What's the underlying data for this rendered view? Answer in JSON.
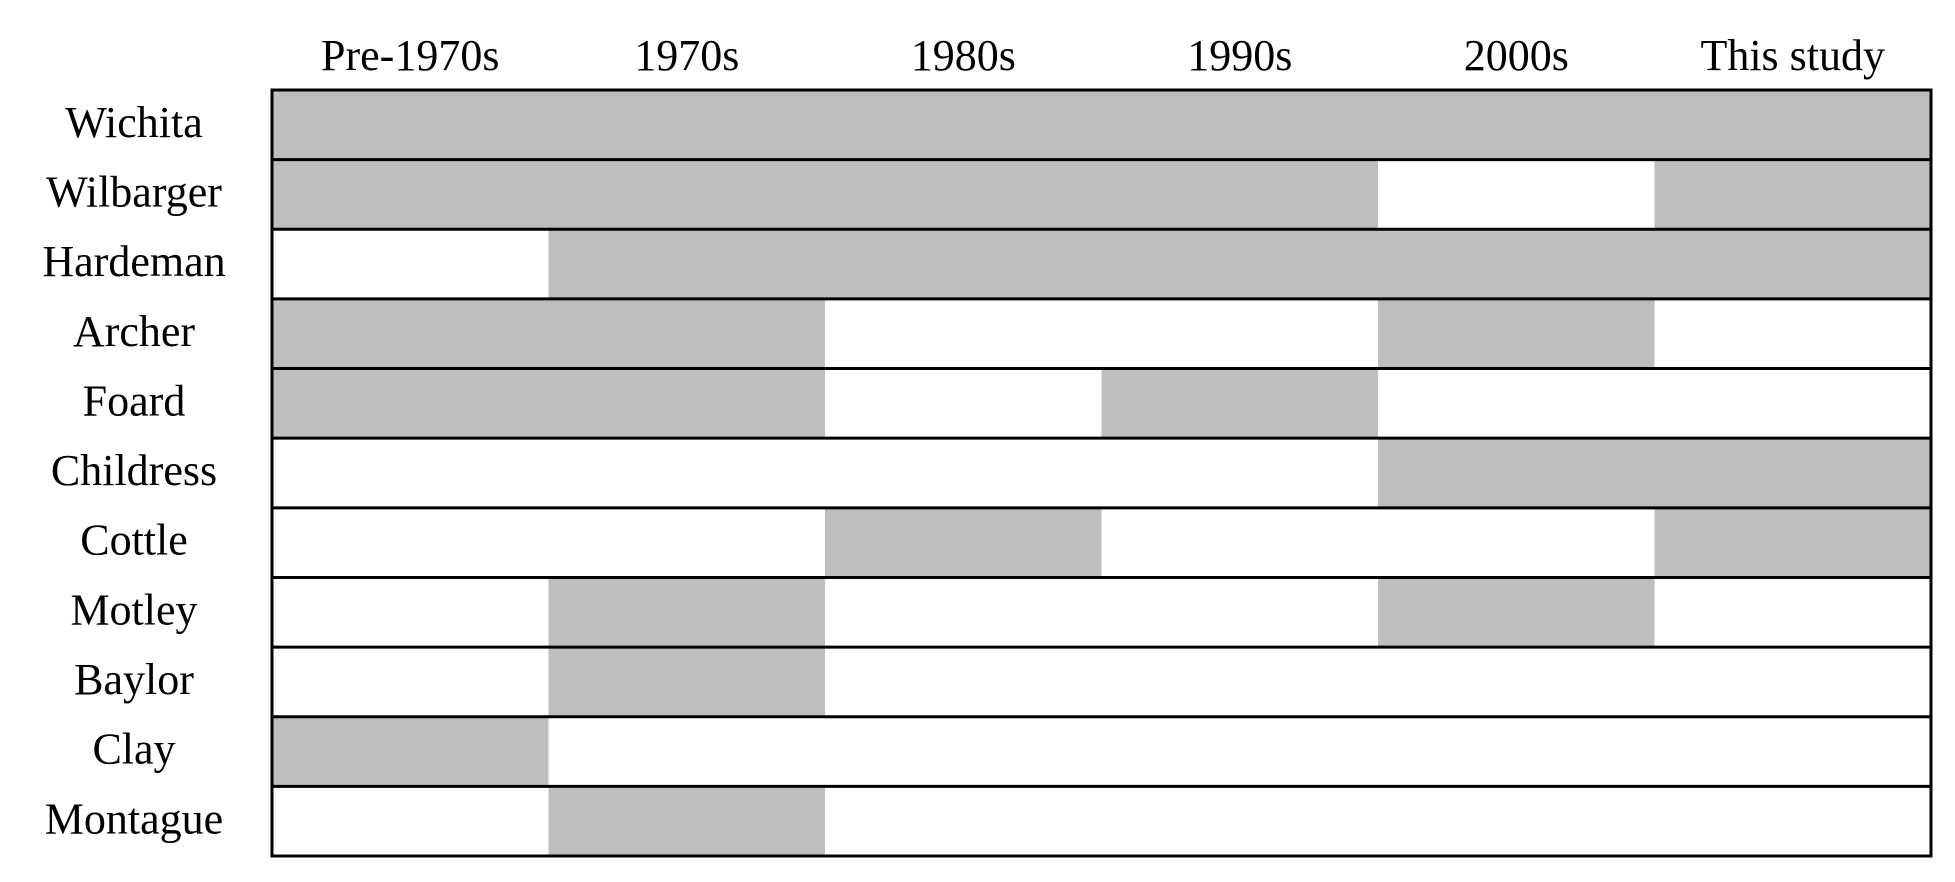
{
  "table": {
    "columns": [
      "Pre-1970s",
      "1970s",
      "1980s",
      "1990s",
      "2000s",
      "This study"
    ],
    "shade_color": "#bebebe",
    "rows": [
      {
        "label": "Wichita",
        "cells": [
          true,
          true,
          true,
          true,
          true,
          true
        ]
      },
      {
        "label": "Wilbarger",
        "cells": [
          true,
          true,
          true,
          true,
          false,
          true
        ]
      },
      {
        "label": "Hardeman",
        "cells": [
          false,
          true,
          true,
          true,
          true,
          true
        ]
      },
      {
        "label": "Archer",
        "cells": [
          true,
          true,
          false,
          false,
          true,
          false
        ]
      },
      {
        "label": "Foard",
        "cells": [
          true,
          true,
          false,
          true,
          false,
          false
        ]
      },
      {
        "label": "Childress",
        "cells": [
          false,
          false,
          false,
          false,
          true,
          true
        ]
      },
      {
        "label": "Cottle",
        "cells": [
          false,
          false,
          true,
          false,
          false,
          true
        ]
      },
      {
        "label": "Motley",
        "cells": [
          false,
          true,
          false,
          false,
          true,
          false
        ]
      },
      {
        "label": "Baylor",
        "cells": [
          false,
          true,
          false,
          false,
          false,
          false
        ]
      },
      {
        "label": "Clay",
        "cells": [
          true,
          false,
          false,
          false,
          false,
          false
        ]
      },
      {
        "label": "Montague",
        "cells": [
          false,
          true,
          false,
          false,
          false,
          false
        ]
      }
    ]
  }
}
